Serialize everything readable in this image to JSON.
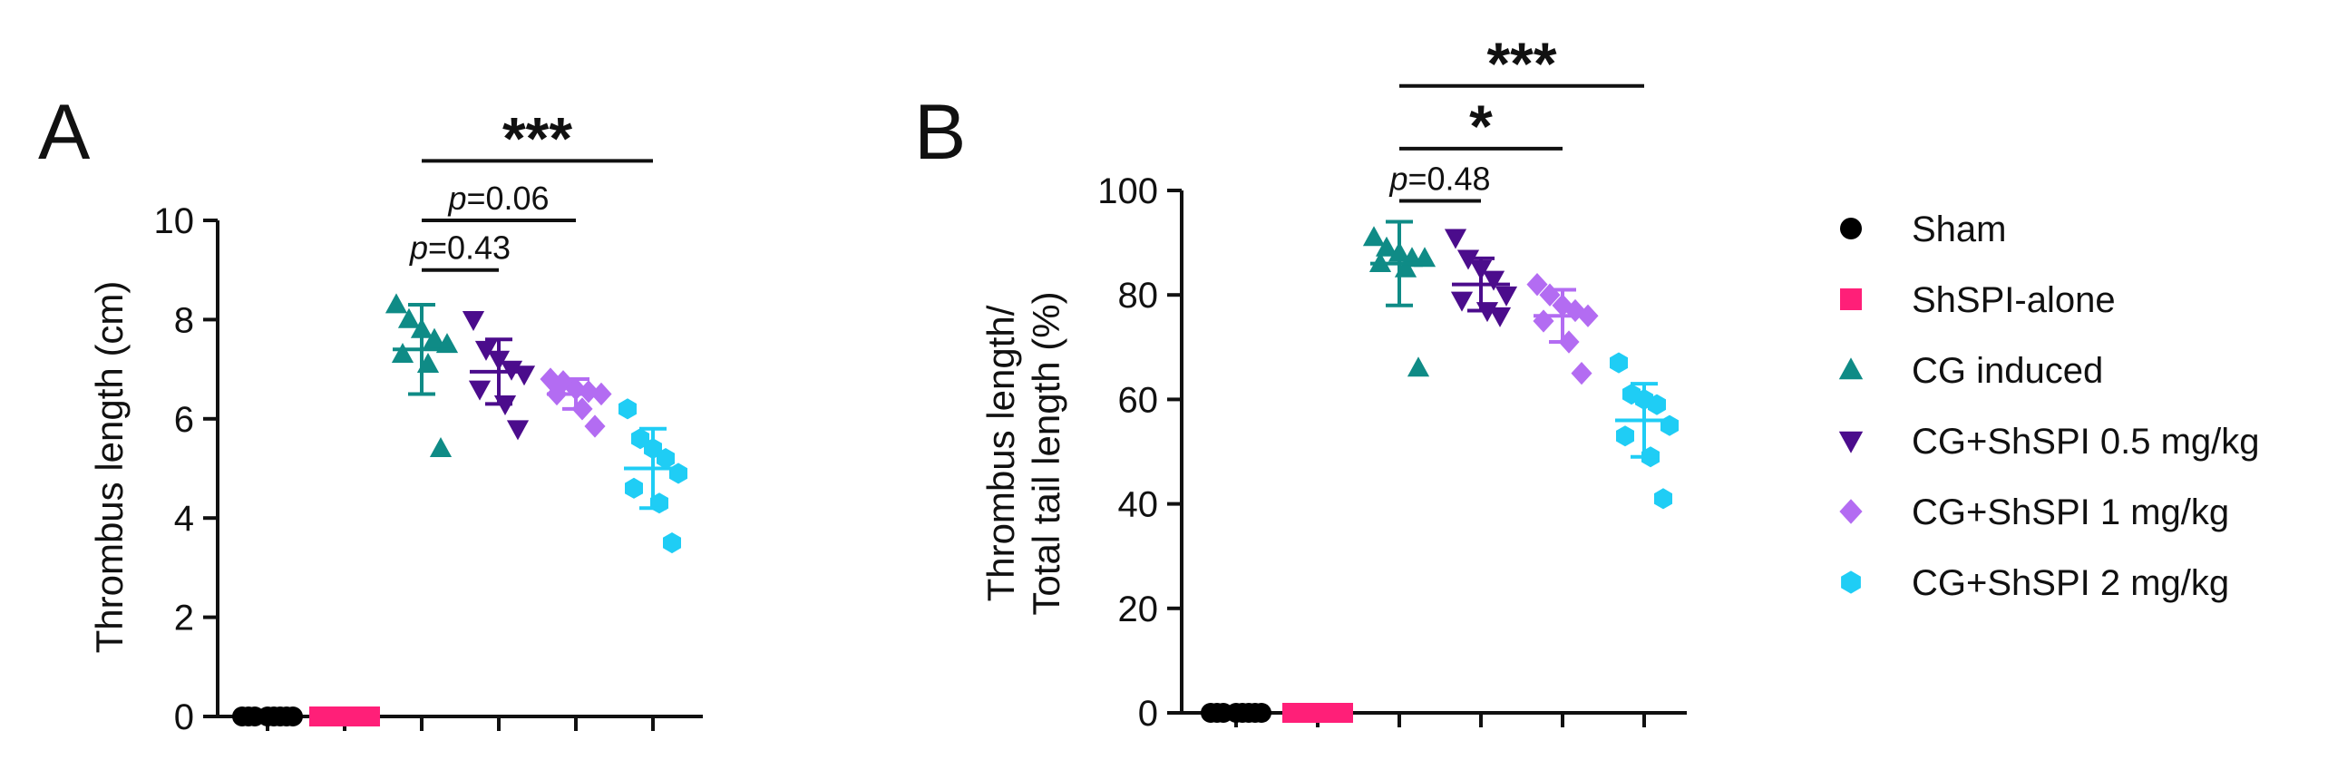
{
  "legend": [
    {
      "name": "Sham",
      "color": "#000000",
      "marker": "circle"
    },
    {
      "name": "ShSPI-alone",
      "color": "#ff1f78",
      "marker": "square"
    },
    {
      "name": "CG induced",
      "color": "#0f8b86",
      "marker": "triangle-up"
    },
    {
      "name": "CG+ShSPI 0.5 mg/kg",
      "color": "#4b0c8c",
      "marker": "triangle-down"
    },
    {
      "name": "CG+ShSPI 1 mg/kg",
      "color": "#b36cf2",
      "marker": "diamond"
    },
    {
      "name": "CG+ShSPI 2 mg/kg",
      "color": "#1fcdf5",
      "marker": "hexagon"
    }
  ],
  "chart_data": [
    {
      "type": "scatter",
      "panel_label": "A",
      "ylabel": "Thrombus length (cm)",
      "ylim": [
        0,
        10
      ],
      "yticks": [
        0,
        2,
        4,
        6,
        8,
        10
      ],
      "groups": [
        {
          "name": "Sham",
          "points": [
            0,
            0,
            0,
            0,
            0,
            0,
            0,
            0
          ],
          "mean": 0,
          "sd": 0
        },
        {
          "name": "ShSPI-alone",
          "points": [
            0,
            0,
            0,
            0,
            0,
            0,
            0,
            0
          ],
          "mean": 0,
          "sd": 0
        },
        {
          "name": "CG induced",
          "points": [
            8.3,
            8.0,
            7.8,
            7.6,
            7.5,
            7.3,
            7.1,
            5.4
          ],
          "mean": 7.4,
          "sd": 0.9
        },
        {
          "name": "CG+ShSPI 0.5 mg/kg",
          "points": [
            8.0,
            7.4,
            7.2,
            7.0,
            6.9,
            6.6,
            6.3,
            5.8
          ],
          "mean": 6.95,
          "sd": 0.65
        },
        {
          "name": "CG+ShSPI 1 mg/kg",
          "points": [
            6.8,
            6.75,
            6.6,
            6.55,
            6.5,
            6.5,
            6.2,
            5.85
          ],
          "mean": 6.5,
          "sd": 0.3
        },
        {
          "name": "CG+ShSPI 2 mg/kg",
          "points": [
            6.2,
            5.6,
            5.4,
            5.2,
            4.9,
            4.6,
            4.3,
            3.5
          ],
          "mean": 5.0,
          "sd": 0.8
        }
      ],
      "annotations": [
        {
          "from": 2,
          "to": 3,
          "y": 9.0,
          "label_prefix": "p",
          "label_suffix": "=0.43",
          "type": "p"
        },
        {
          "from": 2,
          "to": 4,
          "y": 10.0,
          "label_prefix": "p",
          "label_suffix": "=0.06",
          "type": "p"
        },
        {
          "from": 2,
          "to": 5,
          "y": 11.2,
          "label": "***",
          "type": "stars"
        }
      ]
    },
    {
      "type": "scatter",
      "panel_label": "B",
      "ylabel_lines": [
        "Thrombus length/",
        "Total tail length (%)"
      ],
      "ylim": [
        0,
        100
      ],
      "yticks": [
        0,
        20,
        40,
        60,
        80,
        100
      ],
      "groups": [
        {
          "name": "Sham",
          "points": [
            0,
            0,
            0,
            0,
            0,
            0,
            0,
            0
          ],
          "mean": 0,
          "sd": 0
        },
        {
          "name": "ShSPI-alone",
          "points": [
            0,
            0,
            0,
            0,
            0,
            0,
            0,
            0
          ],
          "mean": 0,
          "sd": 0
        },
        {
          "name": "CG induced",
          "points": [
            91,
            89,
            88,
            87,
            87,
            86,
            85,
            66
          ],
          "mean": 86,
          "sd": 8
        },
        {
          "name": "CG+ShSPI 0.5 mg/kg",
          "points": [
            91,
            87,
            85,
            83,
            80,
            79,
            77,
            76
          ],
          "mean": 82,
          "sd": 5
        },
        {
          "name": "CG+ShSPI 1 mg/kg",
          "points": [
            82,
            80,
            78,
            77,
            76,
            75,
            71,
            65
          ],
          "mean": 76,
          "sd": 5
        },
        {
          "name": "CG+ShSPI 2 mg/kg",
          "points": [
            67,
            61,
            60,
            59,
            55,
            53,
            49,
            41
          ],
          "mean": 56,
          "sd": 7
        }
      ],
      "annotations": [
        {
          "from": 2,
          "to": 3,
          "y": 98,
          "label_prefix": "p",
          "label_suffix": "=0.48",
          "type": "p"
        },
        {
          "from": 2,
          "to": 4,
          "y": 108,
          "label": "*",
          "type": "stars"
        },
        {
          "from": 2,
          "to": 5,
          "y": 120,
          "label": "***",
          "type": "stars"
        }
      ]
    }
  ]
}
